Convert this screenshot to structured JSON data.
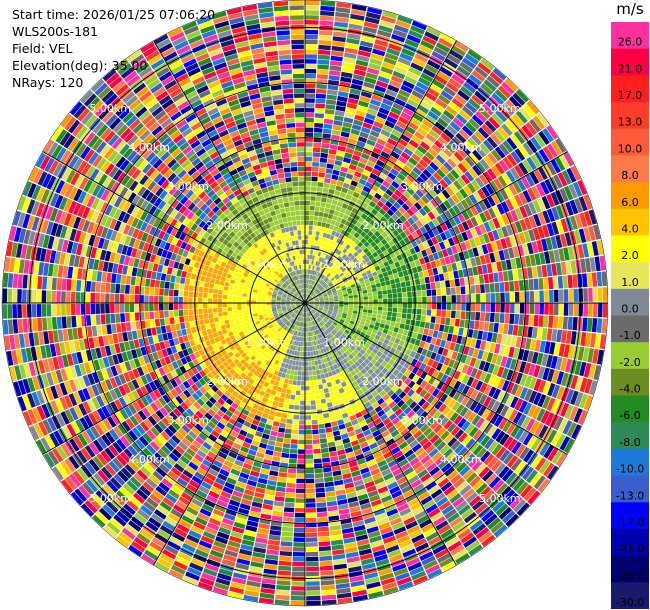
{
  "header": {
    "start_time": "Start time: 2026/01/25 07:06:20",
    "instrument": "WLS200s-181",
    "field": "Field: VEL",
    "elevation": "Elevation(deg): 35.00",
    "nrays": "NRays: 120"
  },
  "colorbar": {
    "unit": "m/s",
    "levels": [
      {
        "label": "26.0",
        "color": "#ff2fa0"
      },
      {
        "label": "21.0",
        "color": "#ff0044"
      },
      {
        "label": "17.0",
        "color": "#ff1f1f"
      },
      {
        "label": "13.0",
        "color": "#ff3c2c"
      },
      {
        "label": "10.0",
        "color": "#ff5a3a"
      },
      {
        "label": "8.0",
        "color": "#ff7a4a"
      },
      {
        "label": "6.0",
        "color": "#ff9a00"
      },
      {
        "label": "4.0",
        "color": "#ffc400"
      },
      {
        "label": "2.0",
        "color": "#ffff00"
      },
      {
        "label": "1.0",
        "color": "#e6e65a"
      },
      {
        "label": "0.0",
        "color": "#7f8a96"
      },
      {
        "label": "-1.0",
        "color": "#6b6b6b"
      },
      {
        "label": "-2.0",
        "color": "#9acd32"
      },
      {
        "label": "-4.0",
        "color": "#6b8e23"
      },
      {
        "label": "-6.0",
        "color": "#228b22"
      },
      {
        "label": "-8.0",
        "color": "#2e8b57"
      },
      {
        "label": "-10.0",
        "color": "#1e7ad8"
      },
      {
        "label": "-13.0",
        "color": "#3a5fcd"
      },
      {
        "label": "-17.0",
        "color": "#0000ff"
      },
      {
        "label": "-21.0",
        "color": "#0000b0"
      },
      {
        "label": "-26.0",
        "color": "#000070"
      },
      {
        "label": "-30.0",
        "color": "#191970"
      }
    ]
  },
  "chart_data": {
    "type": "heatmap",
    "projection": "polar-ppi",
    "field": "VEL",
    "rays": 120,
    "range_rings_km": [
      1,
      2,
      3,
      4,
      5
    ],
    "ring_labels": [
      "1.00km",
      "2.00km",
      "3.00km",
      "4.00km",
      "5.00km"
    ],
    "max_range_km": 5.5,
    "radial_lines_deg": [
      0,
      30,
      60,
      90,
      120,
      150,
      180,
      210,
      240,
      270,
      300,
      330
    ],
    "grid": true,
    "signal_zones": [
      {
        "range_km": [
          0.0,
          0.6
        ],
        "dominant": "gray/green mix"
      },
      {
        "range_km": [
          0.6,
          1.4
        ],
        "dominant": "yellow (south-west, north), green (east), gray"
      },
      {
        "range_km": [
          1.4,
          2.2
        ],
        "dominant": "yellow/orange (south-west), green (north), gray"
      },
      {
        "range_km": [
          2.2,
          5.5
        ],
        "dominant": "noise (random colors)"
      }
    ]
  }
}
